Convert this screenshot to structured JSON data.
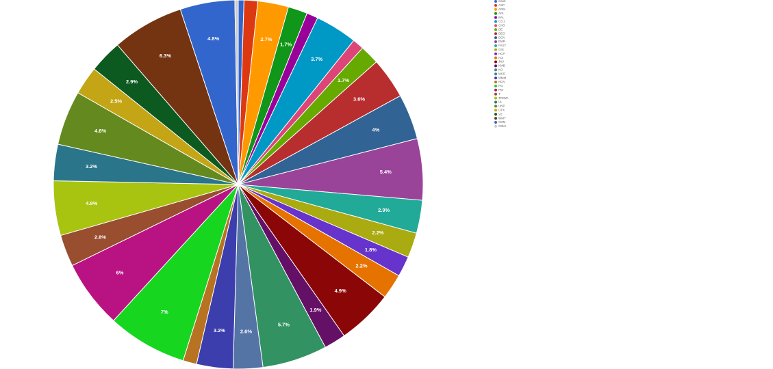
{
  "chart_data": {
    "type": "pie",
    "categories": [
      "Cash",
      "AXP",
      "ADM",
      "APL",
      "BAL",
      "C3.1",
      "CAB",
      "DE",
      "DEO",
      "DOV",
      "EMR",
      "FAST",
      "GIS",
      "HCP",
      "IVZ",
      "JNJ",
      "KMB",
      "KO",
      "MCD",
      "MMM",
      "NOV",
      "PG",
      "PM",
      "T",
      "TROW",
      "UL",
      "UNP",
      "UTX",
      "VZ",
      "WMT",
      "XOM",
      "Other"
    ],
    "values": [
      0.5,
      1.2,
      2.7,
      1.7,
      1,
      3.7,
      1,
      1.7,
      3.6,
      4,
      5.4,
      2.9,
      2.2,
      1.8,
      2.2,
      4.9,
      1.9,
      5.7,
      2.6,
      3.2,
      1.2,
      7,
      6,
      2.8,
      4.8,
      3.2,
      4.8,
      2.5,
      2.9,
      6.3,
      4.8,
      0.3
    ],
    "value_labels": [
      null,
      null,
      "2.7%",
      "1.7%",
      null,
      "3.7%",
      null,
      "1.7%",
      "3.6%",
      "4%",
      "5.4%",
      "2.9%",
      "2.2%",
      "1.8%",
      "2.2%",
      "4.9%",
      "1.9%",
      "5.7%",
      "2.6%",
      "3.2%",
      null,
      "7%",
      "6%",
      "2.8%",
      "4.8%",
      "3.2%",
      "4.8%",
      "2.5%",
      "2.9%",
      "6.3%",
      "4.8%",
      null
    ],
    "colors": [
      "#3366cc",
      "#dc3912",
      "#ff9900",
      "#109618",
      "#990099",
      "#0099c6",
      "#dd4477",
      "#66aa00",
      "#b82e2e",
      "#316395",
      "#994499",
      "#22aa99",
      "#aaaa11",
      "#6633cc",
      "#e67300",
      "#8b0707",
      "#651067",
      "#329262",
      "#5574a6",
      "#3b3eac",
      "#b77322",
      "#16d620",
      "#b91383",
      "#994e30",
      "#a8c411",
      "#2a758a",
      "#648a1f",
      "#c4a516",
      "#0d5a21",
      "#743411",
      "#3366cc",
      "#cccccc"
    ],
    "legend": "right"
  }
}
